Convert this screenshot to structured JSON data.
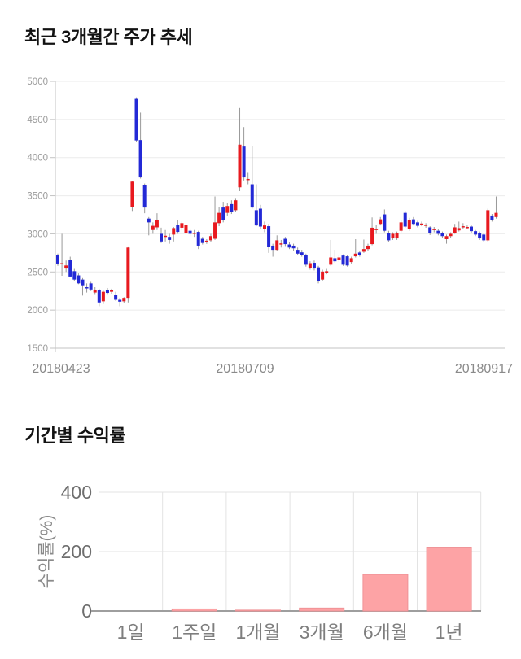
{
  "chart_data": [
    {
      "id": "price-trend",
      "type": "candlestick",
      "title": "최근 3개월간 주가 추세",
      "y_ticks": [
        5000,
        4500,
        4000,
        3500,
        3000,
        2500,
        2000,
        1500
      ],
      "ylim": [
        1500,
        5000
      ],
      "x_tick_labels": [
        "20180423",
        "20180709",
        "20180917"
      ],
      "grid": true,
      "legend": "none",
      "colors": {
        "up": "#e8191f",
        "down": "#2329d6",
        "wick": "#999999",
        "grid": "#ebebeb",
        "axis": "#c3c3c3",
        "tick_text": "#9b9b9b",
        "date_text": "#8a8a8a"
      },
      "candles_format": "open_high_low_close",
      "candles": [
        [
          2720,
          2740,
          2580,
          2610
        ],
        [
          2600,
          3000,
          2450,
          2615
        ],
        [
          2545,
          2650,
          2500,
          2585
        ],
        [
          2655,
          2700,
          2430,
          2440
        ],
        [
          2510,
          2540,
          2380,
          2400
        ],
        [
          2455,
          2480,
          2340,
          2350
        ],
        [
          2400,
          2420,
          2190,
          2325
        ],
        [
          2300,
          2350,
          2230,
          2290
        ],
        [
          2350,
          2370,
          2250,
          2270
        ],
        [
          2230,
          2300,
          2210,
          2265
        ],
        [
          2260,
          2280,
          2050,
          2100
        ],
        [
          2115,
          2255,
          2080,
          2240
        ],
        [
          2265,
          2290,
          2210,
          2225
        ],
        [
          2240,
          2280,
          2215,
          2265
        ],
        [
          2195,
          2240,
          2120,
          2135
        ],
        [
          2135,
          2160,
          2050,
          2110
        ],
        [
          2115,
          2170,
          2090,
          2160
        ],
        [
          2160,
          2835,
          2100,
          2820
        ],
        [
          3355,
          3690,
          3300,
          3685
        ],
        [
          4770,
          4790,
          4205,
          4225
        ],
        [
          4230,
          4590,
          3725,
          3740
        ],
        [
          3640,
          3660,
          3270,
          3345
        ],
        [
          3200,
          3220,
          2980,
          3150
        ],
        [
          3050,
          3150,
          3000,
          3105
        ],
        [
          3085,
          3270,
          3050,
          3180
        ],
        [
          3000,
          3080,
          2880,
          2900
        ],
        [
          2965,
          3050,
          2900,
          2975
        ],
        [
          2960,
          3000,
          2870,
          2920
        ],
        [
          2990,
          3090,
          2900,
          3075
        ],
        [
          3120,
          3180,
          3000,
          3025
        ],
        [
          3080,
          3160,
          3045,
          3140
        ],
        [
          3005,
          3140,
          2980,
          3120
        ],
        [
          3040,
          3070,
          2970,
          3000
        ],
        [
          3005,
          3050,
          2960,
          3015
        ],
        [
          3025,
          3040,
          2800,
          2845
        ],
        [
          2935,
          2960,
          2860,
          2880
        ],
        [
          2890,
          2930,
          2868,
          2910
        ],
        [
          2915,
          3000,
          2890,
          2970
        ],
        [
          2935,
          3490,
          2920,
          3150
        ],
        [
          3140,
          3350,
          3100,
          3275
        ],
        [
          3345,
          3420,
          3150,
          3185
        ],
        [
          3275,
          3400,
          3240,
          3365
        ],
        [
          3390,
          3440,
          3260,
          3290
        ],
        [
          3310,
          3470,
          3290,
          3440
        ],
        [
          3610,
          4650,
          3560,
          4170
        ],
        [
          4145,
          4400,
          3700,
          3740
        ],
        [
          3710,
          3800,
          3650,
          3720
        ],
        [
          3650,
          4150,
          3330,
          3345
        ],
        [
          3310,
          3650,
          3100,
          3110
        ],
        [
          3330,
          3380,
          3060,
          3095
        ],
        [
          3060,
          3160,
          3020,
          3110
        ],
        [
          3100,
          3130,
          2750,
          2830
        ],
        [
          2845,
          2870,
          2700,
          2790
        ],
        [
          2790,
          2980,
          2770,
          2915
        ],
        [
          2865,
          2920,
          2820,
          2875
        ],
        [
          2935,
          2960,
          2840,
          2865
        ],
        [
          2860,
          2890,
          2800,
          2820
        ],
        [
          2845,
          2870,
          2780,
          2810
        ],
        [
          2790,
          2820,
          2720,
          2740
        ],
        [
          2757,
          2790,
          2700,
          2721
        ],
        [
          2720,
          2740,
          2570,
          2595
        ],
        [
          2555,
          2640,
          2530,
          2615
        ],
        [
          2620,
          2650,
          2520,
          2545
        ],
        [
          2560,
          2580,
          2350,
          2385
        ],
        [
          2400,
          2530,
          2380,
          2505
        ],
        [
          2490,
          2540,
          2470,
          2510
        ],
        [
          2595,
          2920,
          2580,
          2690
        ],
        [
          2680,
          2790,
          2620,
          2640
        ],
        [
          2655,
          2720,
          2630,
          2690
        ],
        [
          2715,
          2730,
          2580,
          2595
        ],
        [
          2705,
          2720,
          2570,
          2585
        ],
        [
          2630,
          2700,
          2610,
          2680
        ],
        [
          2705,
          2930,
          2690,
          2740
        ],
        [
          2755,
          2780,
          2700,
          2720
        ],
        [
          2765,
          2925,
          2750,
          2800
        ],
        [
          2800,
          2870,
          2780,
          2845
        ],
        [
          2865,
          3215,
          2850,
          3080
        ],
        [
          3055,
          3120,
          3000,
          3065
        ],
        [
          3130,
          3220,
          3110,
          3190
        ],
        [
          3255,
          3320,
          3020,
          3040
        ],
        [
          3015,
          3040,
          2890,
          2915
        ],
        [
          2940,
          3020,
          2920,
          3000
        ],
        [
          2940,
          3030,
          2920,
          3005
        ],
        [
          3040,
          3175,
          3020,
          3150
        ],
        [
          3275,
          3300,
          3080,
          3095
        ],
        [
          3060,
          3210,
          3040,
          3185
        ],
        [
          3190,
          3220,
          3110,
          3130
        ],
        [
          3150,
          3170,
          3085,
          3105
        ],
        [
          3120,
          3160,
          3100,
          3135
        ],
        [
          3110,
          3140,
          3080,
          3120
        ],
        [
          3085,
          3100,
          2985,
          3005
        ],
        [
          3055,
          3090,
          3020,
          3065
        ],
        [
          3040,
          3060,
          2980,
          3000
        ],
        [
          3015,
          3030,
          2950,
          2970
        ],
        [
          2930,
          2990,
          2870,
          2970
        ],
        [
          2970,
          3020,
          2950,
          3000
        ],
        [
          3015,
          3130,
          3000,
          3085
        ],
        [
          3045,
          3160,
          3030,
          3075
        ],
        [
          3090,
          3140,
          3060,
          3100
        ],
        [
          3080,
          3110,
          3060,
          3090
        ],
        [
          3095,
          3110,
          3015,
          3035
        ],
        [
          3035,
          3050,
          2970,
          2990
        ],
        [
          3015,
          3030,
          2920,
          2940
        ],
        [
          2990,
          3000,
          2900,
          2915
        ],
        [
          2915,
          3330,
          2900,
          3310
        ],
        [
          3240,
          3260,
          3160,
          3180
        ],
        [
          3220,
          3490,
          3200,
          3275
        ]
      ]
    },
    {
      "id": "period-returns",
      "type": "bar",
      "title": "기간별 수익률",
      "categories": [
        "1일",
        "1주일",
        "1개월",
        "3개월",
        "6개월",
        "1년"
      ],
      "values": [
        0,
        7,
        3,
        10,
        123,
        215
      ],
      "ylabel": "수익률(%)",
      "y_ticks": [
        400,
        200,
        0
      ],
      "ylim": [
        0,
        400
      ],
      "grid": true,
      "legend": "none",
      "colors": {
        "bar_fill": "#fda3a5",
        "bar_stroke": "#ef9296",
        "grid": "#e3e3e3",
        "axis": "#9e9e9e",
        "tick_text": "#6e6e6e",
        "category_text": "#7e7e7e",
        "ylabel_text": "#8a8a8a"
      }
    }
  ]
}
